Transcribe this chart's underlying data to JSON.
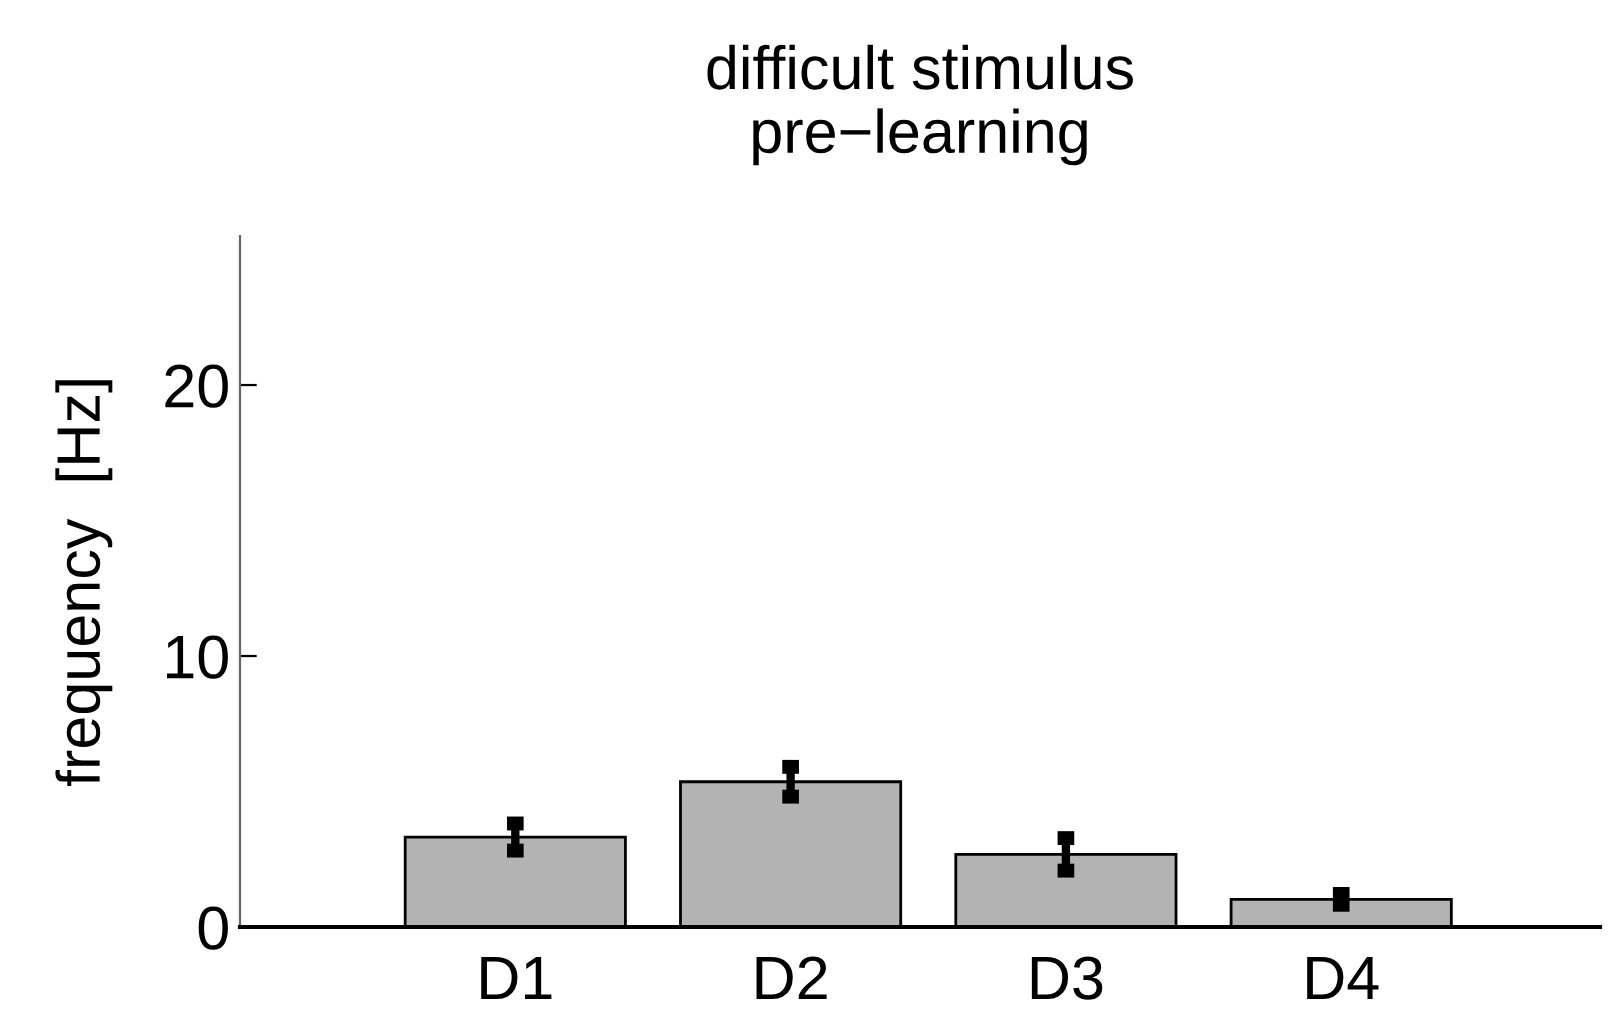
{
  "chart_data": {
    "type": "bar",
    "title": "difficult stimulus\npre−learning",
    "ylabel": "frequency  [Hz]",
    "categories": [
      "D1",
      "D2",
      "D3",
      "D4"
    ],
    "values": [
      3.32,
      5.36,
      2.68,
      1.02
    ],
    "errors": [
      0.5,
      0.55,
      0.6,
      0.2
    ],
    "color": "#b3b3b3",
    "ylim": [
      0,
      25.5
    ],
    "yticks": [
      0,
      10,
      20
    ],
    "grid": false,
    "legend": false
  }
}
